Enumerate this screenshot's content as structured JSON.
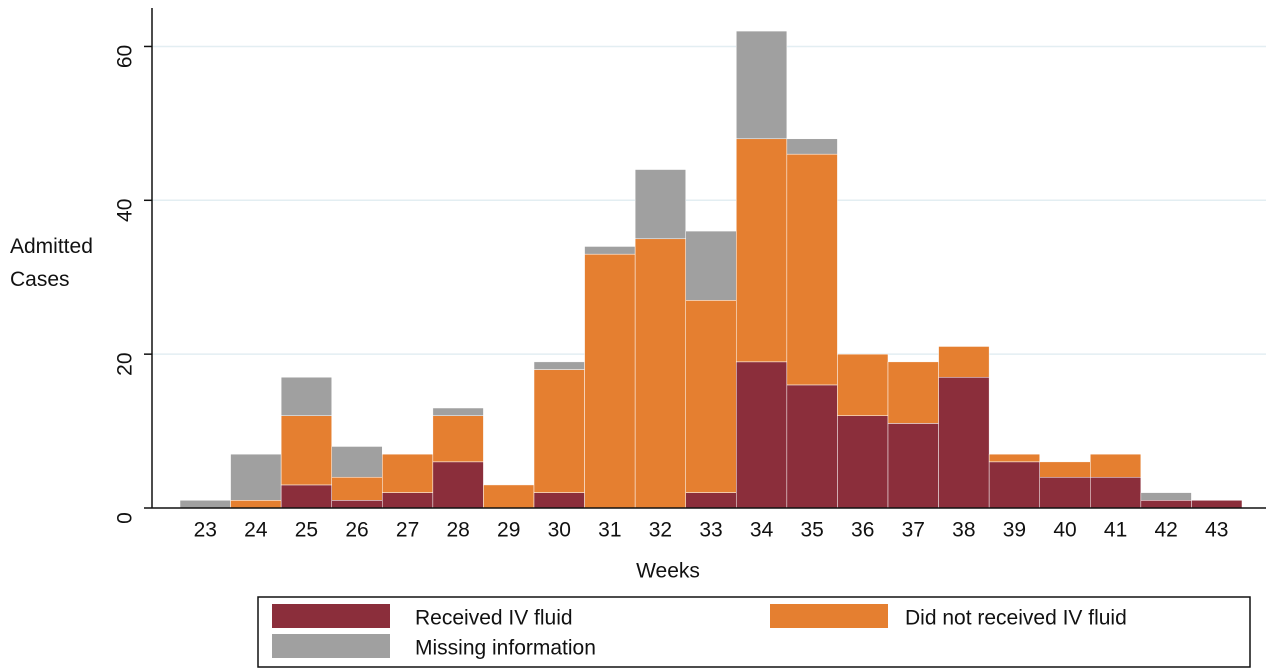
{
  "chart_data": {
    "type": "bar",
    "stacked": true,
    "x_label": "Weeks",
    "y_label": "Admitted Cases",
    "categories": [
      "23",
      "24",
      "25",
      "26",
      "27",
      "28",
      "29",
      "30",
      "31",
      "32",
      "33",
      "34",
      "35",
      "36",
      "37",
      "38",
      "39",
      "40",
      "41",
      "42",
      "43"
    ],
    "series": [
      {
        "name": "Received IV fluid",
        "color": "#8b2e3b",
        "values": [
          0,
          0,
          3,
          1,
          2,
          6,
          0,
          2,
          0,
          0,
          2,
          19,
          16,
          12,
          11,
          17,
          6,
          4,
          4,
          1,
          1
        ]
      },
      {
        "name": "Did not received IV fluid",
        "color": "#e57f30",
        "values": [
          0,
          1,
          9,
          3,
          5,
          6,
          3,
          16,
          33,
          35,
          25,
          29,
          30,
          8,
          8,
          4,
          1,
          2,
          3,
          0,
          0
        ]
      },
      {
        "name": "Missing information",
        "color": "#a0a0a0",
        "values": [
          1,
          6,
          5,
          4,
          0,
          1,
          0,
          1,
          1,
          9,
          9,
          14,
          2,
          0,
          0,
          0,
          0,
          0,
          0,
          1,
          0
        ]
      }
    ],
    "ylim": [
      0,
      65
    ],
    "yticks": [
      0,
      20,
      40,
      60
    ],
    "grid": true
  }
}
